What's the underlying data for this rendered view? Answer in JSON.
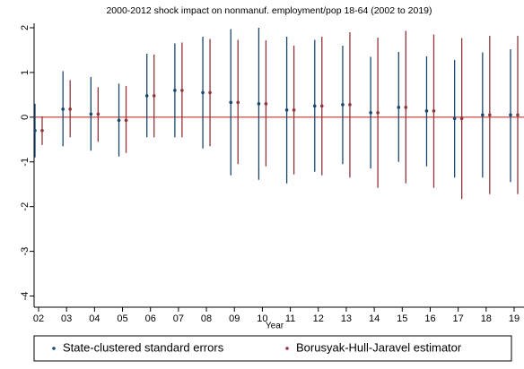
{
  "chart_data": {
    "type": "errorbar",
    "title": "2000-2012 shock impact on nonmanuf. employment/pop 18-64 (2002 to 2019)",
    "x_label": "Year",
    "categories": [
      "02",
      "03",
      "04",
      "05",
      "06",
      "07",
      "08",
      "09",
      "10",
      "11",
      "12",
      "13",
      "14",
      "15",
      "16",
      "17",
      "18",
      "19"
    ],
    "ylim": [
      -4.25,
      2.1
    ],
    "yticks": [
      -4,
      -3,
      -2,
      -1,
      0,
      1,
      2
    ],
    "hline": 0,
    "hline_color": "#c0392b",
    "series": [
      {
        "name": "State-clustered standard errors",
        "color": "#1a476f",
        "values": [
          -0.3,
          0.18,
          0.07,
          -0.07,
          0.48,
          0.6,
          0.55,
          0.33,
          0.3,
          0.16,
          0.25,
          0.28,
          0.1,
          0.22,
          0.14,
          -0.03,
          0.05,
          0.05
        ],
        "lower": [
          -0.9,
          -0.65,
          -0.75,
          -0.88,
          -0.45,
          -0.45,
          -0.7,
          -1.3,
          -1.4,
          -1.48,
          -1.22,
          -1.05,
          -1.15,
          -1.0,
          -1.1,
          -1.35,
          -1.35,
          -1.45
        ],
        "upper": [
          0.3,
          1.03,
          0.9,
          0.75,
          1.42,
          1.65,
          1.8,
          1.97,
          2.0,
          1.8,
          1.73,
          1.6,
          1.35,
          1.46,
          1.36,
          1.28,
          1.45,
          1.52
        ]
      },
      {
        "name": "Borusyak-Hull-Jaravel estimator",
        "color": "#90353b",
        "values": [
          -0.3,
          0.18,
          0.07,
          -0.07,
          0.48,
          0.6,
          0.55,
          0.33,
          0.3,
          0.16,
          0.25,
          0.28,
          0.1,
          0.22,
          0.14,
          -0.03,
          0.05,
          0.05
        ],
        "lower": [
          -0.62,
          -0.45,
          -0.55,
          -0.8,
          -0.45,
          -0.45,
          -0.65,
          -1.05,
          -1.1,
          -1.28,
          -1.3,
          -1.35,
          -1.58,
          -1.48,
          -1.58,
          -1.83,
          -1.72,
          -1.72
        ],
        "upper": [
          0.02,
          0.83,
          0.67,
          0.7,
          1.4,
          1.67,
          1.75,
          1.73,
          1.72,
          1.6,
          1.8,
          1.9,
          1.78,
          1.93,
          1.85,
          1.77,
          1.82,
          1.82
        ]
      }
    ]
  }
}
